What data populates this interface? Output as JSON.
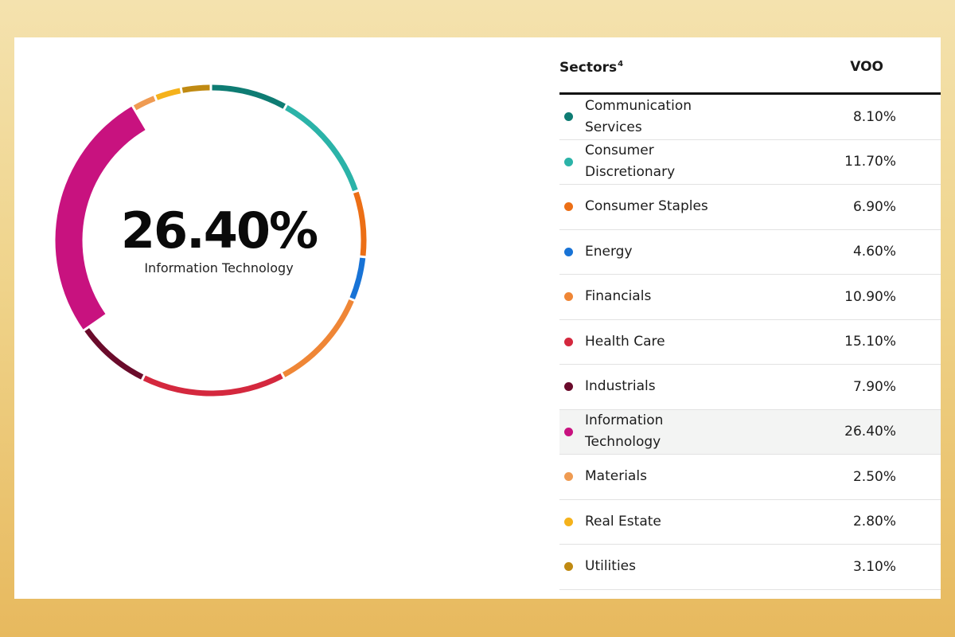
{
  "chart_data": {
    "type": "pie",
    "style": "donut",
    "highlighted": {
      "value_label": "26.40%",
      "name": "Information Technology"
    },
    "table_header": {
      "sector_label": "Sectors",
      "footnote": "4",
      "fund_label": "VOO"
    },
    "slices": [
      {
        "name": "Communication Services",
        "value": 8.1,
        "label": "8.10%",
        "color": "#0e7c73"
      },
      {
        "name": "Consumer Discretionary",
        "value": 11.7,
        "label": "11.70%",
        "color": "#2bb3a8"
      },
      {
        "name": "Consumer Staples",
        "value": 6.9,
        "label": "6.90%",
        "color": "#ec6f16"
      },
      {
        "name": "Energy",
        "value": 4.6,
        "label": "4.60%",
        "color": "#1873d6"
      },
      {
        "name": "Financials",
        "value": 10.9,
        "label": "10.90%",
        "color": "#ef8636"
      },
      {
        "name": "Health Care",
        "value": 15.1,
        "label": "15.10%",
        "color": "#d4283e"
      },
      {
        "name": "Industrials",
        "value": 7.9,
        "label": "7.90%",
        "color": "#6a0b2b"
      },
      {
        "name": "Information Technology",
        "value": 26.4,
        "label": "26.40%",
        "color": "#c8127f"
      },
      {
        "name": "Materials",
        "value": 2.5,
        "label": "2.50%",
        "color": "#ef9b52"
      },
      {
        "name": "Real Estate",
        "value": 2.8,
        "label": "2.80%",
        "color": "#f5b21b"
      },
      {
        "name": "Utilities",
        "value": 3.1,
        "label": "3.10%",
        "color": "#c08a12"
      }
    ]
  }
}
